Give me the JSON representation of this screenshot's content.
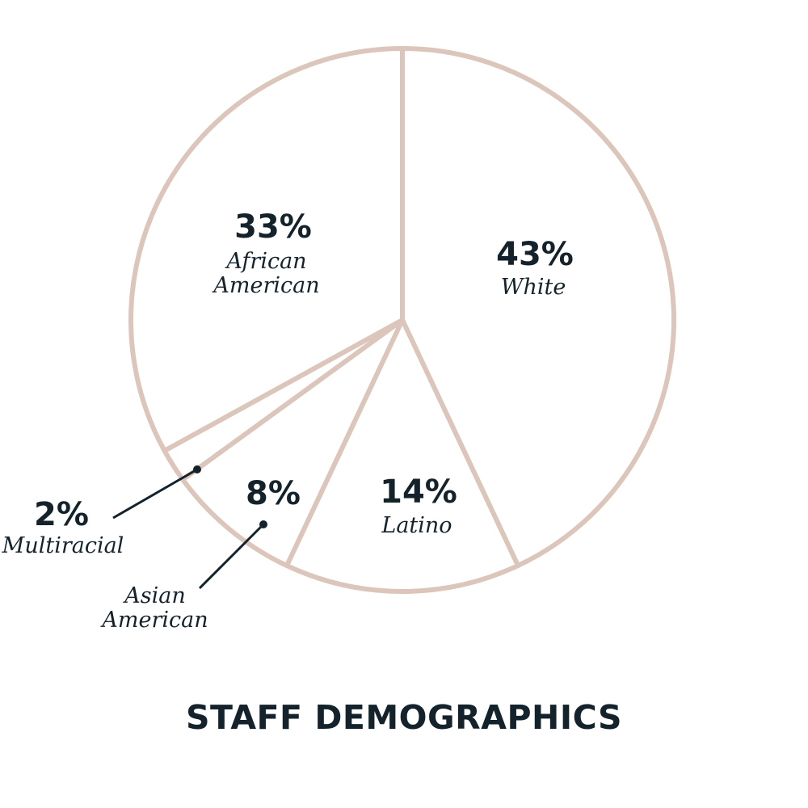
{
  "chart_data": {
    "type": "pie",
    "title": "STAFF DEMOGRAPHICS",
    "slices": [
      {
        "label": "White",
        "value": 43,
        "value_label": "43%"
      },
      {
        "label": "Latino",
        "value": 14,
        "value_label": "14%"
      },
      {
        "label": "Asian American",
        "value": 8,
        "value_label": "8%"
      },
      {
        "label": "Multiracial",
        "value": 2,
        "value_label": "2%"
      },
      {
        "label": "African American",
        "value": 33,
        "value_label": "33%"
      }
    ],
    "colors": {
      "outline": "#dcc6bb",
      "fill": "#ffffff",
      "text": "#14232b"
    }
  }
}
